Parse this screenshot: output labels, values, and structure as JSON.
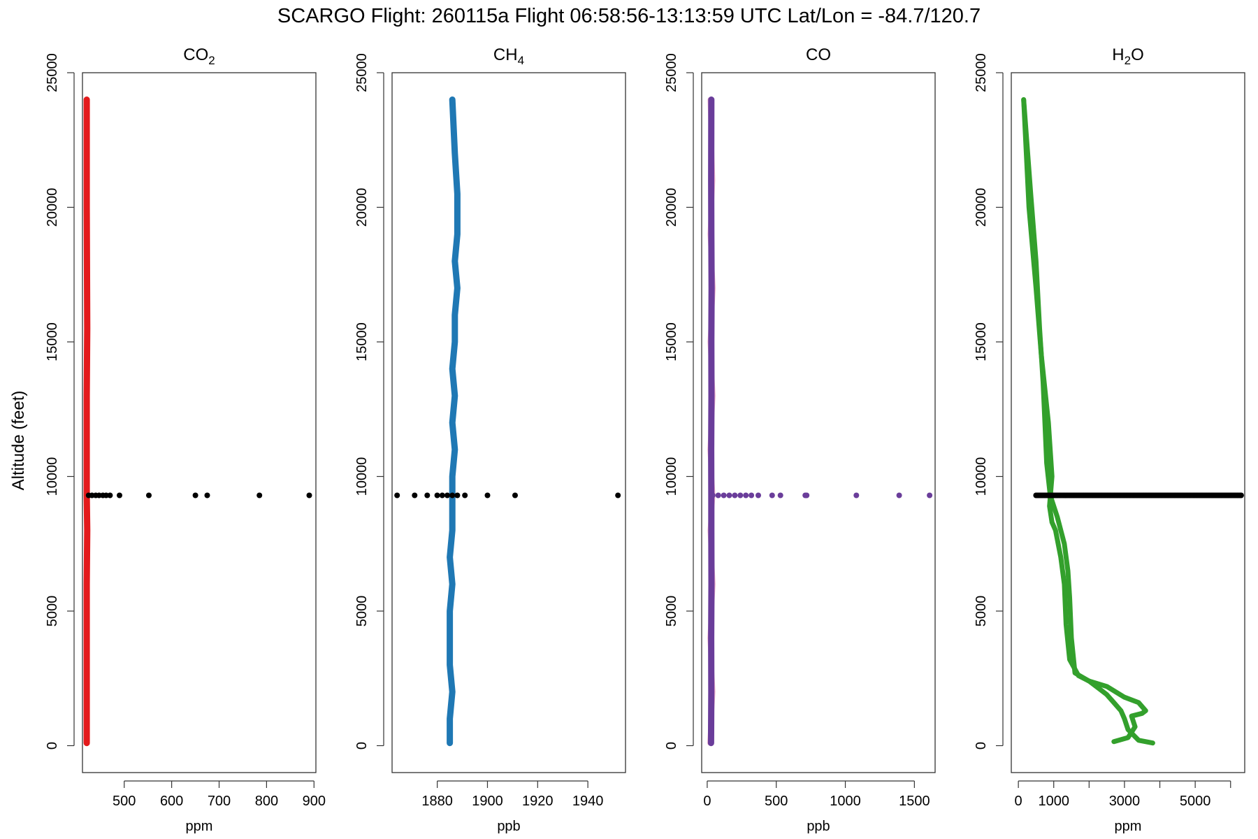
{
  "page_title": "SCARGO Flight: 260115a  Flight  06:58:56-13:13:59 UTC  Lat/Lon = -84.7/120.7",
  "shared_ylabel": "Altitude (feet)",
  "chart_data": [
    {
      "type": "scatter",
      "title": "CO",
      "title_subscript": "2",
      "xlabel": "ppm",
      "ylabel": "Altitude (feet)",
      "xlim": [
        412,
        904
      ],
      "ylim": [
        -1000,
        25000
      ],
      "xticks": [
        500,
        600,
        700,
        800,
        900
      ],
      "yticks": [
        0,
        5000,
        10000,
        15000,
        20000,
        25000
      ],
      "grid": false,
      "color": "#e31a1c",
      "series": [
        {
          "x": [
            421,
            421,
            421,
            421,
            422,
            421,
            421,
            421,
            422,
            421,
            421
          ],
          "y": [
            100,
            2000,
            4000,
            6000,
            8000,
            9300,
            11000,
            13000,
            15500,
            20000,
            24000
          ]
        }
      ],
      "highlight_points": {
        "color": "#000000",
        "altitude": 9300,
        "x": [
          425,
          432,
          440,
          447,
          455,
          462,
          470,
          490,
          552,
          650,
          675,
          785,
          890
        ]
      }
    },
    {
      "type": "scatter",
      "title": "CH",
      "title_subscript": "4",
      "xlabel": "ppb",
      "ylabel": "Altitude (feet)",
      "xlim": [
        1862,
        1955
      ],
      "ylim": [
        -1000,
        25000
      ],
      "xticks": [
        1880,
        1900,
        1920,
        1940
      ],
      "yticks": [
        0,
        5000,
        10000,
        15000,
        20000,
        25000
      ],
      "grid": false,
      "color": "#1f78b4",
      "series": [
        {
          "x": [
            1885,
            1885,
            1886,
            1885,
            1885,
            1885,
            1886,
            1885,
            1886,
            1886,
            1886,
            1887,
            1886,
            1887,
            1886,
            1887,
            1887,
            1888,
            1887,
            1888,
            1888,
            1887,
            1886
          ],
          "y": [
            100,
            1000,
            2000,
            3000,
            4000,
            5000,
            6000,
            7000,
            8000,
            9000,
            10000,
            11000,
            12000,
            13000,
            14000,
            15000,
            16000,
            17000,
            18000,
            19000,
            20500,
            22000,
            24000
          ]
        }
      ],
      "highlight_points": {
        "color": "#000000",
        "altitude": 9300,
        "x": [
          1864,
          1871,
          1876,
          1880,
          1882,
          1884,
          1886,
          1888,
          1891,
          1900,
          1911,
          1952
        ]
      }
    },
    {
      "type": "scatter",
      "title": "CO",
      "title_subscript": "",
      "xlabel": "ppb",
      "ylabel": "Altitude (feet)",
      "xlim": [
        -40,
        1650
      ],
      "ylim": [
        -1000,
        25000
      ],
      "xticks": [
        0,
        500,
        1000,
        1500
      ],
      "yticks": [
        0,
        5000,
        10000,
        15000,
        20000,
        25000
      ],
      "grid": false,
      "color": "#6a3d9a",
      "secondary_color": "#f2a7c6",
      "series": [
        {
          "x": [
            28,
            30,
            29,
            31,
            30,
            30,
            29,
            31,
            30,
            32,
            30,
            29,
            30
          ],
          "y": [
            100,
            2000,
            4000,
            6000,
            8000,
            9300,
            11000,
            13000,
            15000,
            17000,
            19000,
            21000,
            24000
          ]
        }
      ],
      "highlight_points": {
        "color": "#6a3d9a",
        "altitude": 9300,
        "x": [
          40,
          80,
          120,
          160,
          200,
          240,
          280,
          320,
          370,
          470,
          530,
          710,
          720,
          1080,
          1390,
          1610
        ]
      }
    },
    {
      "type": "scatter",
      "title": "H",
      "title_subscript": "2",
      "title_suffix": "O",
      "xlabel": "ppm",
      "ylabel": "Altitude (feet)",
      "xlim": [
        -200,
        6400
      ],
      "ylim": [
        -1000,
        25000
      ],
      "xticks": [
        0,
        1000,
        3000,
        5000
      ],
      "minor_xticks": [
        2000,
        4000,
        6000
      ],
      "yticks": [
        0,
        5000,
        10000,
        15000,
        20000,
        25000
      ],
      "grid": false,
      "color": "#33a02c",
      "series": [
        {
          "name": "",
          "x": [
            2700,
            3100,
            3300,
            3200,
            3500,
            3600,
            3400,
            3000,
            2500,
            2000,
            1600,
            1500,
            1450,
            1400,
            1300,
            1100,
            900,
            800,
            750,
            700,
            600,
            500,
            350,
            150
          ],
          "y": [
            150,
            300,
            700,
            1100,
            1200,
            1300,
            1600,
            1800,
            2200,
            2400,
            2700,
            4000,
            5500,
            6500,
            7500,
            8500,
            9300,
            10500,
            12000,
            13500,
            15500,
            18000,
            20500,
            24000
          ]
        },
        {
          "name": "",
          "x": [
            3800,
            3400,
            3100,
            3000,
            2900,
            2700,
            2500,
            2300,
            2000,
            1700,
            1450,
            1350,
            1300,
            1200,
            1050,
            950,
            880,
            950,
            850,
            650,
            500,
            300,
            150
          ],
          "y": [
            100,
            200,
            600,
            1000,
            1300,
            1600,
            1900,
            2100,
            2400,
            2600,
            3200,
            4500,
            6000,
            7000,
            8000,
            8300,
            8900,
            10000,
            12000,
            14500,
            17000,
            20000,
            24000
          ]
        }
      ],
      "highlight_points": {
        "color": "#000000",
        "altitude": 9300,
        "x_from": 500,
        "x_to": 6300
      }
    }
  ]
}
